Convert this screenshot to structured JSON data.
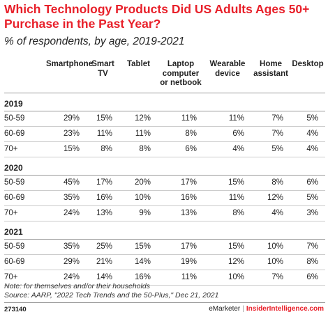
{
  "chart_data": {
    "type": "table",
    "title": "Which Technology Products Did US Adults Ages 50+ Purchase in the Past Year?",
    "subtitle": "% of respondents, by age, 2019-2021",
    "columns": [
      "Smartphone",
      "Smart TV",
      "Tablet",
      "Laptop computer or netbook",
      "Wearable device",
      "Home assistant",
      "Desktop"
    ],
    "groups": [
      {
        "year": "2019",
        "rows": [
          {
            "label": "50-59",
            "values": [
              "29%",
              "15%",
              "12%",
              "11%",
              "11%",
              "7%",
              "5%"
            ]
          },
          {
            "label": "60-69",
            "values": [
              "23%",
              "11%",
              "11%",
              "8%",
              "6%",
              "7%",
              "4%"
            ]
          },
          {
            "label": "70+",
            "values": [
              "15%",
              "8%",
              "8%",
              "6%",
              "4%",
              "5%",
              "4%"
            ]
          }
        ]
      },
      {
        "year": "2020",
        "rows": [
          {
            "label": "50-59",
            "values": [
              "45%",
              "17%",
              "20%",
              "17%",
              "15%",
              "8%",
              "6%"
            ]
          },
          {
            "label": "60-69",
            "values": [
              "35%",
              "16%",
              "10%",
              "16%",
              "11%",
              "12%",
              "5%"
            ]
          },
          {
            "label": "70+",
            "values": [
              "24%",
              "13%",
              "9%",
              "13%",
              "8%",
              "4%",
              "3%"
            ]
          }
        ]
      },
      {
        "year": "2021",
        "rows": [
          {
            "label": "50-59",
            "values": [
              "35%",
              "25%",
              "15%",
              "17%",
              "15%",
              "10%",
              "7%"
            ]
          },
          {
            "label": "60-69",
            "values": [
              "29%",
              "21%",
              "14%",
              "19%",
              "12%",
              "10%",
              "8%"
            ]
          },
          {
            "label": "70+",
            "values": [
              "24%",
              "14%",
              "16%",
              "11%",
              "10%",
              "7%",
              "6%"
            ]
          }
        ]
      }
    ]
  },
  "note": "Note: for themselves and/or their households",
  "source": "Source: AARP, \"2022 Tech Trends and the 50-Plus,\" Dec 21, 2021",
  "footer": {
    "id": "273140",
    "brand_left": "eMarketer",
    "separator": "|",
    "brand_right": "InsiderIntelligence.com"
  }
}
